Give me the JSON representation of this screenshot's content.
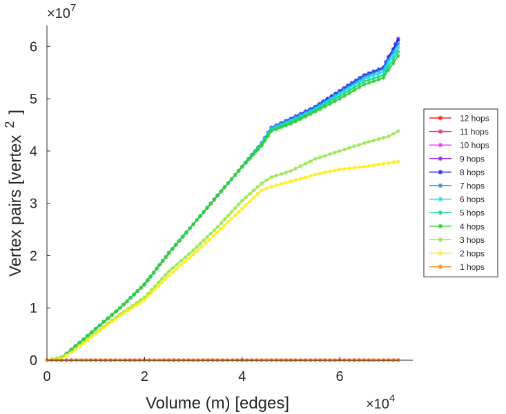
{
  "chart_data": {
    "type": "line",
    "xlabel": "Volume (m) [edges]",
    "ylabel": "Vertex pairs [vertex",
    "ylabel_superscript": "2",
    "ylabel_close": "]",
    "x_exponent": "×10",
    "x_exponent_power": "4",
    "y_exponent": "×10",
    "y_exponent_power": "7",
    "xlim": [
      0,
      7.5
    ],
    "ylim": [
      0,
      6.4
    ],
    "x_ticks": [
      0,
      2,
      4,
      6
    ],
    "y_ticks": [
      0,
      1,
      2,
      3,
      4,
      5,
      6
    ],
    "x_tick_labels": [
      "0",
      "2",
      "4",
      "6"
    ],
    "y_tick_labels": [
      "0",
      "1",
      "2",
      "3",
      "4",
      "5",
      "6"
    ],
    "grid": false,
    "legend_position": "right",
    "series": [
      {
        "name": "12 hops",
        "color": "#ff1a1a",
        "x": [
          0,
          7.2
        ],
        "y": [
          0,
          0
        ]
      },
      {
        "name": "11 hops",
        "color": "#ff2a8a",
        "x": [
          0,
          7.2
        ],
        "y": [
          0,
          0
        ]
      },
      {
        "name": "10 hops",
        "color": "#ff33ff",
        "x": [
          0,
          7.2
        ],
        "y": [
          0,
          0
        ]
      },
      {
        "name": "9 hops",
        "color": "#8a2be2",
        "x": [
          0,
          0.3,
          0.5,
          1,
          1.5,
          2,
          2.5,
          3,
          3.5,
          4,
          4.4,
          4.6,
          5,
          5.5,
          6,
          6.5,
          6.9,
          7.0,
          7.1,
          7.2
        ],
        "y": [
          0,
          0.05,
          0.2,
          0.6,
          1.0,
          1.45,
          2.05,
          2.6,
          3.15,
          3.7,
          4.15,
          4.45,
          4.62,
          4.85,
          5.15,
          5.45,
          5.6,
          5.8,
          5.95,
          6.15
        ]
      },
      {
        "name": "8 hops",
        "color": "#2a2ae6",
        "x": [
          0,
          0.3,
          0.5,
          1,
          1.5,
          2,
          2.5,
          3,
          3.5,
          4,
          4.4,
          4.6,
          5,
          5.5,
          6,
          6.5,
          6.9,
          7.0,
          7.1,
          7.2
        ],
        "y": [
          0,
          0.05,
          0.2,
          0.6,
          1.0,
          1.45,
          2.05,
          2.6,
          3.15,
          3.7,
          4.15,
          4.45,
          4.62,
          4.85,
          5.15,
          5.45,
          5.6,
          5.8,
          5.95,
          6.12
        ]
      },
      {
        "name": "7 hops",
        "color": "#2a8ae6",
        "x": [
          0,
          0.3,
          0.5,
          1,
          1.5,
          2,
          2.5,
          3,
          3.5,
          4,
          4.4,
          4.6,
          5,
          5.5,
          6,
          6.5,
          6.9,
          7.0,
          7.1,
          7.2
        ],
        "y": [
          0,
          0.05,
          0.2,
          0.6,
          1.0,
          1.45,
          2.05,
          2.6,
          3.15,
          3.7,
          4.15,
          4.45,
          4.6,
          4.83,
          5.12,
          5.42,
          5.57,
          5.75,
          5.9,
          6.05
        ]
      },
      {
        "name": "6 hops",
        "color": "#1ad9ff",
        "x": [
          0,
          0.3,
          0.5,
          1,
          1.5,
          2,
          2.5,
          3,
          3.5,
          4,
          4.4,
          4.6,
          5,
          5.5,
          6,
          6.5,
          6.9,
          7.0,
          7.1,
          7.2
        ],
        "y": [
          0,
          0.05,
          0.2,
          0.6,
          1.0,
          1.45,
          2.05,
          2.6,
          3.15,
          3.7,
          4.13,
          4.42,
          4.58,
          4.8,
          5.1,
          5.38,
          5.52,
          5.7,
          5.82,
          5.98
        ]
      },
      {
        "name": "5 hops",
        "color": "#1ad98a",
        "x": [
          0,
          0.3,
          0.5,
          1,
          1.5,
          2,
          2.5,
          3,
          3.5,
          4,
          4.4,
          4.6,
          5,
          5.5,
          6,
          6.5,
          6.9,
          7.0,
          7.1,
          7.2
        ],
        "y": [
          0,
          0.05,
          0.2,
          0.6,
          1.0,
          1.45,
          2.05,
          2.6,
          3.15,
          3.7,
          4.12,
          4.4,
          4.55,
          4.78,
          5.05,
          5.33,
          5.45,
          5.62,
          5.75,
          5.9
        ]
      },
      {
        "name": "4 hops",
        "color": "#33cc33",
        "x": [
          0,
          0.3,
          0.5,
          1,
          1.5,
          2,
          2.5,
          3,
          3.5,
          4,
          4.4,
          4.6,
          5,
          5.5,
          6,
          6.5,
          6.9,
          7.0,
          7.1,
          7.2
        ],
        "y": [
          0,
          0.05,
          0.2,
          0.6,
          1.0,
          1.45,
          2.05,
          2.6,
          3.15,
          3.7,
          4.1,
          4.38,
          4.52,
          4.75,
          5.0,
          5.27,
          5.4,
          5.55,
          5.68,
          5.82
        ]
      },
      {
        "name": "3 hops",
        "color": "#99e64d",
        "x": [
          0,
          0.3,
          0.5,
          1,
          1.5,
          2,
          2.5,
          3,
          3.5,
          4,
          4.4,
          4.6,
          5,
          5.5,
          6,
          6.5,
          7,
          7.2
        ],
        "y": [
          0,
          0.04,
          0.15,
          0.52,
          0.88,
          1.2,
          1.7,
          2.1,
          2.55,
          3.05,
          3.38,
          3.5,
          3.62,
          3.85,
          4.0,
          4.15,
          4.28,
          4.38
        ]
      },
      {
        "name": "2 hops",
        "color": "#ffee1a",
        "x": [
          0,
          0.3,
          0.5,
          1,
          1.5,
          2,
          2.5,
          3,
          3.5,
          4,
          4.4,
          4.6,
          5,
          5.5,
          6,
          6.5,
          7,
          7.2
        ],
        "y": [
          0,
          0.04,
          0.15,
          0.5,
          0.85,
          1.15,
          1.62,
          2.02,
          2.45,
          2.9,
          3.25,
          3.32,
          3.42,
          3.55,
          3.65,
          3.7,
          3.77,
          3.8
        ]
      },
      {
        "name": "1 hops",
        "color": "#ff8c1a",
        "x": [
          0,
          7.2
        ],
        "y": [
          0,
          0
        ]
      }
    ]
  }
}
